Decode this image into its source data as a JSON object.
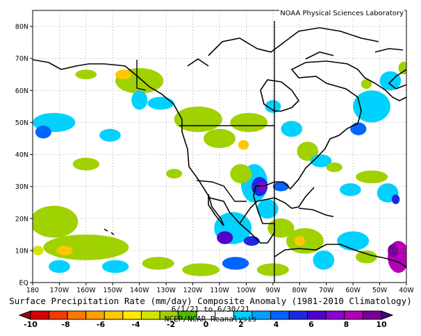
{
  "credit": "NOAA Physical Sciences Laboratory",
  "title": {
    "line1": "Surface Precipitation Rate (mm/day) Composite Anomaly (1981-2010 Climatology)",
    "line2": "6/1/21 to 6/30/21",
    "line3": "NCEP/NCAR Reanalysis"
  },
  "map": {
    "lon_range": [
      -180,
      -40
    ],
    "lat_range": [
      0,
      85
    ],
    "lon_ticks": [
      {
        "value": -180,
        "label": "180"
      },
      {
        "value": -170,
        "label": "170W"
      },
      {
        "value": -160,
        "label": "160W"
      },
      {
        "value": -150,
        "label": "150W"
      },
      {
        "value": -140,
        "label": "140W"
      },
      {
        "value": -130,
        "label": "130W"
      },
      {
        "value": -120,
        "label": "120W"
      },
      {
        "value": -110,
        "label": "110W"
      },
      {
        "value": -100,
        "label": "100W"
      },
      {
        "value": -90,
        "label": "90W"
      },
      {
        "value": -80,
        "label": "80W"
      },
      {
        "value": -70,
        "label": "70W"
      },
      {
        "value": -60,
        "label": "60W"
      },
      {
        "value": -50,
        "label": "50W"
      },
      {
        "value": -40,
        "label": "40W"
      }
    ],
    "lat_ticks": [
      {
        "value": 0,
        "label": "EQ"
      },
      {
        "value": 10,
        "label": "10N"
      },
      {
        "value": 20,
        "label": "20N"
      },
      {
        "value": 30,
        "label": "30N"
      },
      {
        "value": 40,
        "label": "40N"
      },
      {
        "value": 50,
        "label": "50N"
      },
      {
        "value": 60,
        "label": "60N"
      },
      {
        "value": 70,
        "label": "70N"
      },
      {
        "value": 80,
        "label": "80N"
      }
    ]
  },
  "colorbar": {
    "labels": [
      "-10",
      "-8",
      "-6",
      "-4",
      "-2",
      "0",
      "2",
      "4",
      "6",
      "8",
      "10"
    ],
    "colors": [
      "#a50000",
      "#d60000",
      "#f03c00",
      "#ff7800",
      "#ffa000",
      "#ffc800",
      "#ffeb00",
      "#d2e600",
      "#a0d200",
      "#50be00",
      "#ffffff",
      "#ffffff",
      "#00d2ff",
      "#00a0ff",
      "#0064ff",
      "#1e28dc",
      "#5000c8",
      "#8c00d2",
      "#b400b4",
      "#780096",
      "#4b0078"
    ]
  },
  "anomaly_fields": [
    {
      "lon": -140,
      "lat": 63,
      "rx": 9,
      "ry": 4,
      "color": "#a0d200"
    },
    {
      "lon": -146,
      "lat": 65,
      "rx": 3,
      "ry": 1.5,
      "color": "#ffc800"
    },
    {
      "lon": -160,
      "lat": 65,
      "rx": 4,
      "ry": 1.5,
      "color": "#a0d200"
    },
    {
      "lon": -172,
      "lat": 50,
      "rx": 8,
      "ry": 3,
      "color": "#00d2ff"
    },
    {
      "lon": -176,
      "lat": 47,
      "rx": 3,
      "ry": 2,
      "color": "#0064ff"
    },
    {
      "lon": -151,
      "lat": 46,
      "rx": 4,
      "ry": 2,
      "color": "#00d2ff"
    },
    {
      "lon": -140,
      "lat": 57,
      "rx": 3,
      "ry": 3,
      "color": "#00d2ff"
    },
    {
      "lon": -132,
      "lat": 56,
      "rx": 5,
      "ry": 2,
      "color": "#00d2ff"
    },
    {
      "lon": -118,
      "lat": 51,
      "rx": 9,
      "ry": 4,
      "color": "#a0d200"
    },
    {
      "lon": -110,
      "lat": 45,
      "rx": 6,
      "ry": 3,
      "color": "#a0d200"
    },
    {
      "lon": -101,
      "lat": 43,
      "rx": 2,
      "ry": 1.5,
      "color": "#ffc800"
    },
    {
      "lon": -99,
      "lat": 50,
      "rx": 7,
      "ry": 3,
      "color": "#a0d200"
    },
    {
      "lon": -90,
      "lat": 55,
      "rx": 3,
      "ry": 2,
      "color": "#00d2ff"
    },
    {
      "lon": -83,
      "lat": 48,
      "rx": 4,
      "ry": 2.5,
      "color": "#00d2ff"
    },
    {
      "lon": -53,
      "lat": 55,
      "rx": 7,
      "ry": 5,
      "color": "#00d2ff"
    },
    {
      "lon": -58,
      "lat": 48,
      "rx": 3,
      "ry": 2,
      "color": "#0064ff"
    },
    {
      "lon": -46,
      "lat": 63,
      "rx": 4,
      "ry": 3,
      "color": "#00d2ff"
    },
    {
      "lon": -41,
      "lat": 67,
      "rx": 2,
      "ry": 2,
      "color": "#a0d200"
    },
    {
      "lon": -55,
      "lat": 62,
      "rx": 2,
      "ry": 1.5,
      "color": "#a0d200"
    },
    {
      "lon": -77,
      "lat": 41,
      "rx": 4,
      "ry": 3,
      "color": "#a0d200"
    },
    {
      "lon": -72,
      "lat": 38,
      "rx": 4,
      "ry": 2,
      "color": "#00d2ff"
    },
    {
      "lon": -67,
      "lat": 36,
      "rx": 3,
      "ry": 1.5,
      "color": "#a0d200"
    },
    {
      "lon": -53,
      "lat": 33,
      "rx": 6,
      "ry": 2,
      "color": "#a0d200"
    },
    {
      "lon": -61,
      "lat": 29,
      "rx": 4,
      "ry": 2,
      "color": "#00d2ff"
    },
    {
      "lon": -47,
      "lat": 28,
      "rx": 4,
      "ry": 3,
      "color": "#00d2ff"
    },
    {
      "lon": -44,
      "lat": 26,
      "rx": 1.5,
      "ry": 1.5,
      "color": "#1e28dc"
    },
    {
      "lon": -97,
      "lat": 31,
      "rx": 5,
      "ry": 6,
      "color": "#00d2ff"
    },
    {
      "lon": -95,
      "lat": 30,
      "rx": 3,
      "ry": 3,
      "color": "#1e28dc"
    },
    {
      "lon": -94,
      "lat": 30,
      "rx": 1.5,
      "ry": 1.5,
      "color": "#8c00d2"
    },
    {
      "lon": -102,
      "lat": 34,
      "rx": 4,
      "ry": 3,
      "color": "#a0d200"
    },
    {
      "lon": -87,
      "lat": 30,
      "rx": 3,
      "ry": 1.5,
      "color": "#0064ff"
    },
    {
      "lon": -92,
      "lat": 23,
      "rx": 4,
      "ry": 3,
      "color": "#00d2ff"
    },
    {
      "lon": -105,
      "lat": 17,
      "rx": 7,
      "ry": 5,
      "color": "#00d2ff"
    },
    {
      "lon": -108,
      "lat": 14,
      "rx": 3,
      "ry": 2,
      "color": "#5000c8"
    },
    {
      "lon": -98,
      "lat": 13,
      "rx": 3,
      "ry": 1.5,
      "color": "#1e28dc"
    },
    {
      "lon": -87,
      "lat": 17,
      "rx": 5,
      "ry": 3,
      "color": "#a0d200"
    },
    {
      "lon": -78,
      "lat": 13,
      "rx": 7,
      "ry": 4,
      "color": "#a0d200"
    },
    {
      "lon": -80,
      "lat": 13,
      "rx": 2,
      "ry": 1.5,
      "color": "#ffc800"
    },
    {
      "lon": -60,
      "lat": 13,
      "rx": 6,
      "ry": 3,
      "color": "#00d2ff"
    },
    {
      "lon": -71,
      "lat": 7,
      "rx": 4,
      "ry": 3,
      "color": "#00d2ff"
    },
    {
      "lon": -55,
      "lat": 8,
      "rx": 4,
      "ry": 2,
      "color": "#a0d200"
    },
    {
      "lon": -43,
      "lat": 8,
      "rx": 4,
      "ry": 5,
      "color": "#b400b4"
    },
    {
      "lon": -45,
      "lat": 10,
      "rx": 2,
      "ry": 2,
      "color": "#780096"
    },
    {
      "lon": -172,
      "lat": 19,
      "rx": 9,
      "ry": 5,
      "color": "#a0d200"
    },
    {
      "lon": -160,
      "lat": 11,
      "rx": 16,
      "ry": 4,
      "color": "#a0d200"
    },
    {
      "lon": -168,
      "lat": 10,
      "rx": 3,
      "ry": 1.5,
      "color": "#ffc800"
    },
    {
      "lon": -178,
      "lat": 10,
      "rx": 2,
      "ry": 1.5,
      "color": "#d2e600"
    },
    {
      "lon": -149,
      "lat": 5,
      "rx": 5,
      "ry": 2,
      "color": "#00d2ff"
    },
    {
      "lon": -170,
      "lat": 5,
      "rx": 4,
      "ry": 2,
      "color": "#00d2ff"
    },
    {
      "lon": -133,
      "lat": 6,
      "rx": 6,
      "ry": 2,
      "color": "#a0d200"
    },
    {
      "lon": -117,
      "lat": 4,
      "rx": 7,
      "ry": 2,
      "color": "#a0d200"
    },
    {
      "lon": -104,
      "lat": 6,
      "rx": 5,
      "ry": 2,
      "color": "#0064ff"
    },
    {
      "lon": -90,
      "lat": 4,
      "rx": 6,
      "ry": 2,
      "color": "#a0d200"
    },
    {
      "lon": -160,
      "lat": 37,
      "rx": 5,
      "ry": 2,
      "color": "#a0d200"
    },
    {
      "lon": -127,
      "lat": 34,
      "rx": 3,
      "ry": 1.5,
      "color": "#a0d200"
    }
  ]
}
